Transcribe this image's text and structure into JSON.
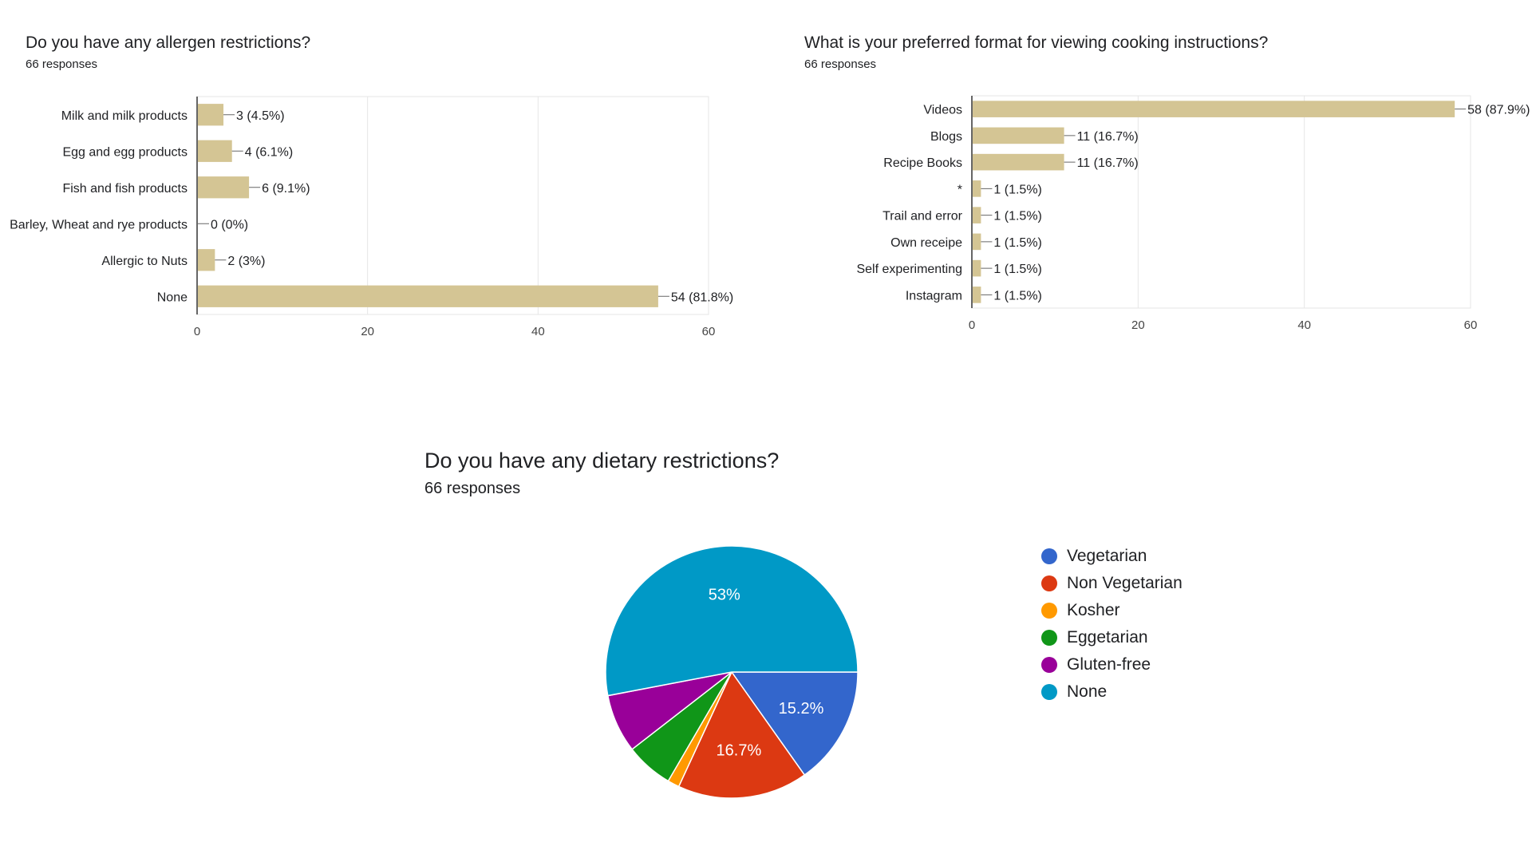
{
  "chart_data": [
    {
      "type": "bar",
      "orientation": "horizontal",
      "title": "Do you have any allergen restrictions?",
      "subtitle": "66 responses",
      "categories": [
        "Milk and milk products",
        "Egg and egg products",
        "Fish and fish products",
        "Barley, Wheat and rye products",
        "Allergic to Nuts",
        "None"
      ],
      "values": [
        3,
        4,
        6,
        0,
        2,
        54
      ],
      "data_labels": [
        "3 (4.5%)",
        "4 (6.1%)",
        "6 (9.1%)",
        "0 (0%)",
        "2 (3%)",
        "54 (81.8%)"
      ],
      "xlim": [
        0,
        60
      ],
      "xticks": [
        0,
        20,
        40,
        60
      ],
      "grid": true,
      "color": "#d4c594"
    },
    {
      "type": "bar",
      "orientation": "horizontal",
      "title": "What is your preferred format for viewing cooking instructions?",
      "subtitle": "66 responses",
      "categories": [
        "Videos",
        "Blogs",
        "Recipe Books",
        "*",
        "Trail and error",
        "Own receipe",
        "Self experimenting",
        "Instagram"
      ],
      "values": [
        58,
        11,
        11,
        1,
        1,
        1,
        1,
        1
      ],
      "data_labels": [
        "58 (87.9%)",
        "11 (16.7%)",
        "11 (16.7%)",
        "1 (1.5%)",
        "1 (1.5%)",
        "1 (1.5%)",
        "1 (1.5%)",
        "1 (1.5%)"
      ],
      "xlim": [
        0,
        60
      ],
      "xticks": [
        0,
        20,
        40,
        60
      ],
      "grid": true,
      "color": "#d4c594"
    },
    {
      "type": "pie",
      "title": "Do you have any dietary restrictions?",
      "subtitle": "66 responses",
      "slices": [
        {
          "label": "Vegetarian",
          "value": 15.2,
          "color": "#3366cc",
          "text": "15.2%"
        },
        {
          "label": "Non Vegetarian",
          "value": 16.7,
          "color": "#dc3912",
          "text": "16.7%"
        },
        {
          "label": "Kosher",
          "value": 1.5,
          "color": "#ff9900",
          "text": ""
        },
        {
          "label": "Eggetarian",
          "value": 6.1,
          "color": "#109618",
          "text": ""
        },
        {
          "label": "Gluten-free",
          "value": 7.5,
          "color": "#990099",
          "text": ""
        },
        {
          "label": "None",
          "value": 53.0,
          "color": "#0099c6",
          "text": "53%"
        }
      ],
      "legend_position": "right"
    }
  ]
}
